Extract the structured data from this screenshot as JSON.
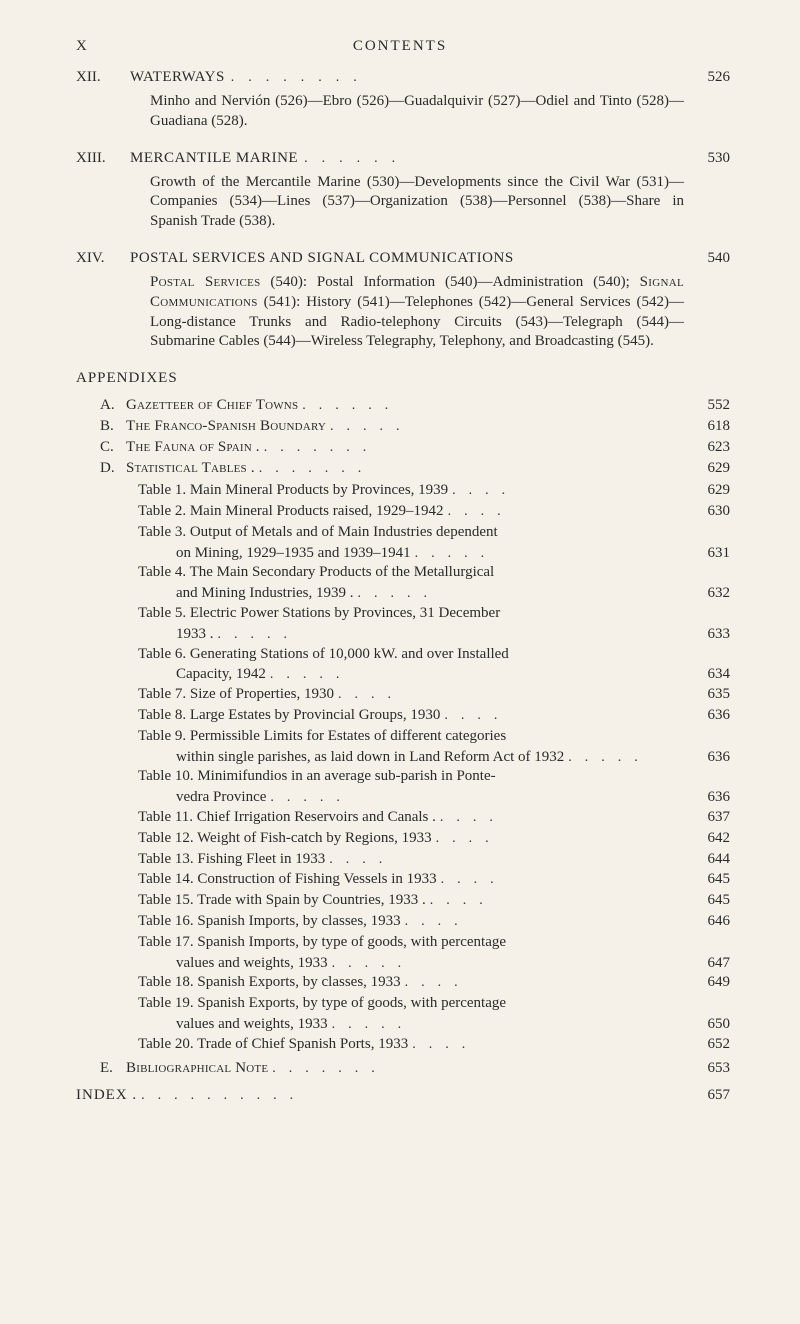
{
  "colors": {
    "background": "#f5f1e8",
    "text": "#2a2a2a"
  },
  "typography": {
    "body_font": "Times New Roman",
    "body_size_pt": 11,
    "smallcaps": true
  },
  "header": {
    "page_roman": "X",
    "title": "CONTENTS"
  },
  "chapters": [
    {
      "num": "XII.",
      "title": "WATERWAYS",
      "page": "526",
      "body": "Minho and Nervión (526)—Ebro (526)—Guadalquivir (527)—Odiel and Tinto (528)—Guadiana (528)."
    },
    {
      "num": "XIII.",
      "title": "MERCANTILE MARINE",
      "page": "530",
      "body": "Growth of the Mercantile Marine (530)—Developments since the Civil War (531)—Companies (534)—Lines (537)—Organization (538)—Personnel (538)—Share in Spanish Trade (538)."
    },
    {
      "num": "XIV.",
      "title": "POSTAL SERVICES AND SIGNAL COMMUNICATIONS",
      "page": "540",
      "body_sc1": "Postal Services",
      "body_mid1": " (540): Postal Information (540)—Administration (540); ",
      "body_sc2": "Signal Communications",
      "body_mid2": " (541): History (541)—Telephones (542)—General Services (542)—Long-distance Trunks and Radio-telephony Circuits (543)—Telegraph (544)—Submarine Cables (544)—Wireless Telegraphy, Telephony, and Broadcasting (545)."
    }
  ],
  "appendixes": {
    "title": "APPENDIXES",
    "items": [
      {
        "letter": "A.",
        "title": "Gazetteer of Chief Towns",
        "page": "552"
      },
      {
        "letter": "B.",
        "title": "The Franco-Spanish Boundary",
        "page": "618"
      },
      {
        "letter": "C.",
        "title": "The Fauna of Spain .",
        "page": "623"
      },
      {
        "letter": "D.",
        "title": "Statistical Tables .",
        "page": "629"
      }
    ],
    "tables": [
      {
        "lines": [
          "Table 1.  Main Mineral Products by Provinces, 1939"
        ],
        "page": "629"
      },
      {
        "lines": [
          "Table 2.  Main Mineral Products raised, 1929–1942"
        ],
        "page": "630"
      },
      {
        "lines": [
          "Table 3.  Output of Metals and of Main Industries dependent",
          "on Mining, 1929–1935 and 1939–1941"
        ],
        "page": "631"
      },
      {
        "lines": [
          "Table 4.  The Main Secondary Products of the Metallurgical",
          "and Mining Industries, 1939 ."
        ],
        "page": "632"
      },
      {
        "lines": [
          "Table 5.  Electric Power Stations by Provinces, 31 December",
          "1933  ."
        ],
        "page": "633"
      },
      {
        "lines": [
          "Table 6.  Generating Stations of 10,000 kW. and over Installed",
          "Capacity, 1942"
        ],
        "page": "634"
      },
      {
        "lines": [
          "Table 7.  Size of Properties, 1930"
        ],
        "page": "635"
      },
      {
        "lines": [
          "Table 8.  Large Estates by Provincial Groups, 1930"
        ],
        "page": "636"
      },
      {
        "lines": [
          "Table 9.  Permissible Limits for Estates of different categories",
          "within single parishes, as laid down in Land Reform Act of 1932"
        ],
        "page": "636"
      },
      {
        "lines": [
          "Table 10.  Minimifundios in an average sub-parish in Ponte-",
          "vedra Province"
        ],
        "page": "636"
      },
      {
        "lines": [
          "Table 11.  Chief Irrigation Reservoirs and Canals ."
        ],
        "page": "637"
      },
      {
        "lines": [
          "Table 12.  Weight of Fish-catch by Regions, 1933"
        ],
        "page": "642"
      },
      {
        "lines": [
          "Table 13.  Fishing Fleet in 1933"
        ],
        "page": "644"
      },
      {
        "lines": [
          "Table 14.  Construction of Fishing Vessels in 1933"
        ],
        "page": "645"
      },
      {
        "lines": [
          "Table 15.  Trade with Spain by Countries, 1933  ."
        ],
        "page": "645"
      },
      {
        "lines": [
          "Table 16.  Spanish Imports, by classes, 1933"
        ],
        "page": "646"
      },
      {
        "lines": [
          "Table 17.  Spanish Imports, by type of goods, with percentage",
          "values and weights, 1933"
        ],
        "page": "647"
      },
      {
        "lines": [
          "Table 18.  Spanish Exports, by classes, 1933"
        ],
        "page": "649"
      },
      {
        "lines": [
          "Table 19.  Spanish Exports, by type of goods, with percentage",
          "values and weights, 1933"
        ],
        "page": "650"
      },
      {
        "lines": [
          "Table 20.  Trade of Chief Spanish Ports, 1933"
        ],
        "page": "652"
      }
    ],
    "bib": {
      "letter": "E.",
      "title": "Bibliographical Note",
      "page": "653"
    }
  },
  "index": {
    "title": "INDEX  .",
    "page": "657"
  }
}
